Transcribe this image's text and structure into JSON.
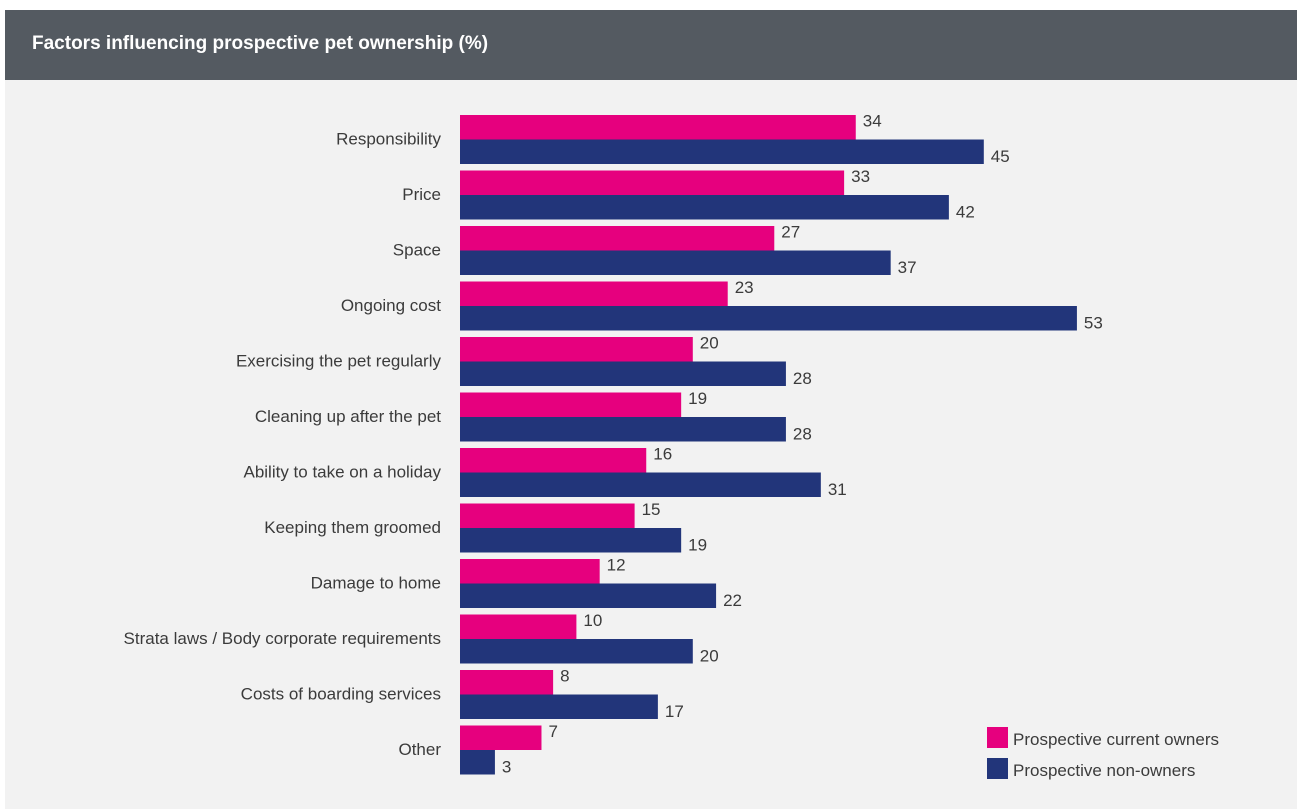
{
  "header": {
    "title": "Factors influencing prospective pet ownership (%)"
  },
  "colors": {
    "header_bg": "#545a61",
    "panel_bg": "#f2f2f2",
    "series_current_owners": "#e6007e",
    "series_non_owners": "#22357a"
  },
  "chart_data": {
    "type": "bar",
    "orientation": "horizontal",
    "title": "Factors influencing prospective pet ownership (%)",
    "xlabel": "",
    "ylabel": "",
    "xlim": [
      0,
      60
    ],
    "grid": false,
    "legend_position": "bottom-right",
    "categories": [
      "Responsibility",
      "Price",
      "Space",
      "Ongoing cost",
      "Exercising the pet regularly",
      "Cleaning up after the pet",
      "Ability to take on a holiday",
      "Keeping them groomed",
      "Damage to home",
      "Strata laws / Body corporate requirements",
      "Costs of boarding services",
      "Other"
    ],
    "series": [
      {
        "name": "Prospective current owners",
        "color": "#e6007e",
        "values": [
          34,
          33,
          27,
          23,
          20,
          19,
          16,
          15,
          12,
          10,
          8,
          7
        ]
      },
      {
        "name": "Prospective non-owners",
        "color": "#22357a",
        "values": [
          45,
          42,
          37,
          53,
          28,
          28,
          31,
          19,
          22,
          20,
          17,
          3
        ]
      }
    ]
  }
}
